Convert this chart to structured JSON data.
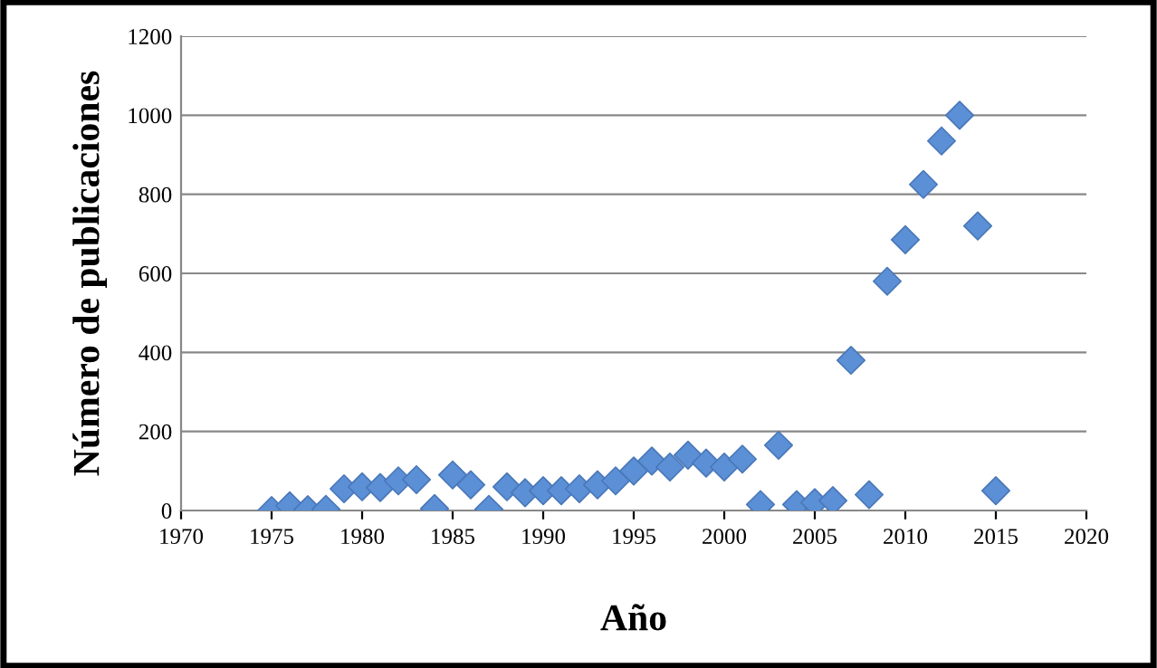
{
  "chart_data": {
    "type": "scatter",
    "xlabel": "Año",
    "ylabel": "Número de publicaciones",
    "x": [
      1975,
      1976,
      1977,
      1978,
      1979,
      1980,
      1981,
      1982,
      1983,
      1984,
      1985,
      1986,
      1987,
      1988,
      1989,
      1990,
      1991,
      1992,
      1993,
      1994,
      1995,
      1996,
      1997,
      1998,
      1999,
      2000,
      2001,
      2002,
      2003,
      2004,
      2005,
      2006,
      2007,
      2008,
      2009,
      2010,
      2011,
      2012,
      2013,
      2014,
      2015
    ],
    "series": [
      {
        "color": "#5b8fd6",
        "values": [
          0,
          12,
          2,
          3,
          55,
          60,
          58,
          75,
          78,
          5,
          90,
          65,
          3,
          60,
          45,
          50,
          50,
          55,
          65,
          75,
          100,
          125,
          110,
          140,
          120,
          110,
          130,
          15,
          165,
          15,
          20,
          25,
          380,
          40,
          580,
          685,
          825,
          935,
          1000,
          720,
          50
        ]
      }
    ],
    "xlim": [
      1970,
      2020
    ],
    "xticks": [
      1970,
      1975,
      1980,
      1985,
      1990,
      1995,
      2000,
      2005,
      2010,
      2015,
      2020
    ],
    "ylim": [
      0,
      1200
    ],
    "yticks": [
      0,
      200,
      400,
      600,
      800,
      1000,
      1200
    ],
    "grid": "y",
    "marker": "diamond",
    "legend": false
  }
}
